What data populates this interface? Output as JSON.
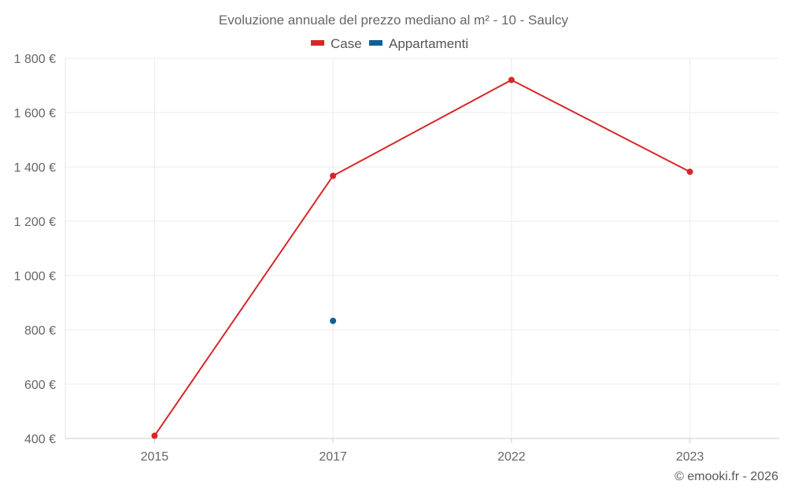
{
  "chart_data": {
    "type": "line",
    "title": "Evoluzione annuale del prezzo mediano al m² - 10 - Saulcy",
    "categories": [
      "2015",
      "2017",
      "2022",
      "2023"
    ],
    "ylim": [
      400,
      1800
    ],
    "yticks": [
      400,
      600,
      800,
      1000,
      1200,
      1400,
      1600,
      1800
    ],
    "ytick_labels": [
      "400 €",
      "600 €",
      "800 €",
      "1 000 €",
      "1 200 €",
      "1 400 €",
      "1 600 €",
      "1 800 €"
    ],
    "grid": true,
    "legend_position": "top-center",
    "series": [
      {
        "name": "Case",
        "color": "#d62728",
        "values": [
          410,
          1367,
          1720,
          1382
        ]
      },
      {
        "name": "Appartamenti",
        "color": "#0e5f96",
        "values": [
          null,
          833,
          null,
          null
        ]
      }
    ],
    "credit": "© emooki.fr - 2026"
  }
}
